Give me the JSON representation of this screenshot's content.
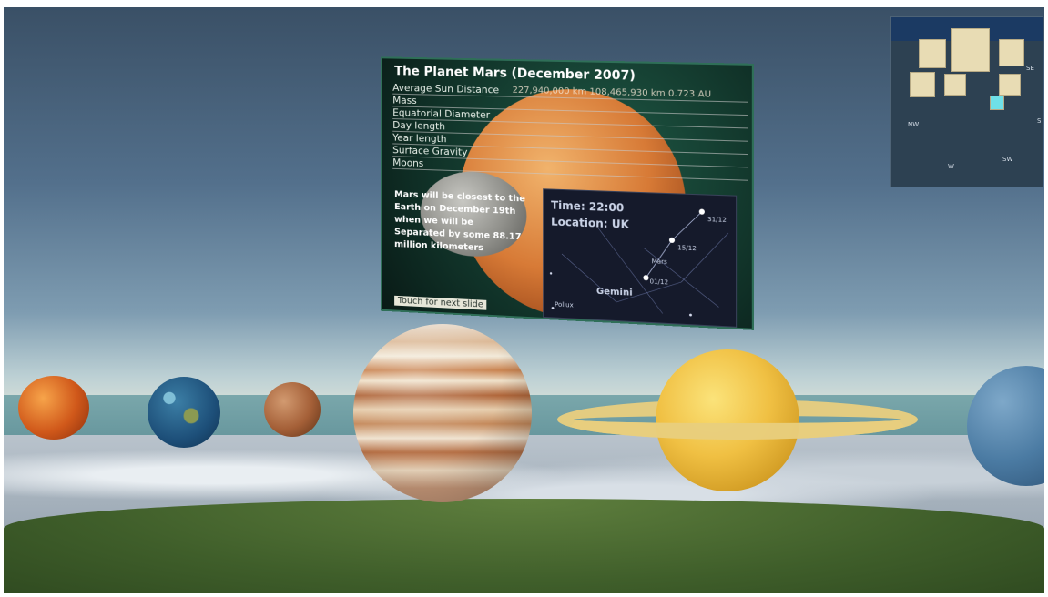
{
  "board": {
    "title": "The Planet Mars (December 2007)",
    "facts": [
      {
        "label": "Average Sun Distance",
        "value": "227,940,000 km 108,465,930 km 0.723 AU"
      },
      {
        "label": "Mass",
        "value": ""
      },
      {
        "label": "Equatorial Diameter",
        "value": ""
      },
      {
        "label": "Day length",
        "value": ""
      },
      {
        "label": "Year length",
        "value": ""
      },
      {
        "label": "Surface Gravity",
        "value": ""
      },
      {
        "label": "Moons",
        "value": ""
      }
    ],
    "closest_text": "Mars will be closest to the Earth on December 19th when we will be Separated by some 88.17 million kilometers",
    "touch_label": "Touch for next slide",
    "sky_chart": {
      "time": "Time: 22:00",
      "location": "Location: UK",
      "constellation": "Gemini",
      "mars_label": "Mars",
      "pollux_label": "Pollux",
      "dates": [
        "01/12",
        "15/12",
        "31/12"
      ]
    }
  },
  "minimap": {
    "directions": {
      "nw": "NW",
      "w": "W",
      "sw": "SW",
      "s": "S",
      "se": "SE"
    }
  },
  "colors": {
    "board_bg": "#0f2e25",
    "mars": "#d77a36",
    "saturn": "#f0c043",
    "ring": "#e9cf7e",
    "sky_chart_bg": "#151a2b"
  }
}
